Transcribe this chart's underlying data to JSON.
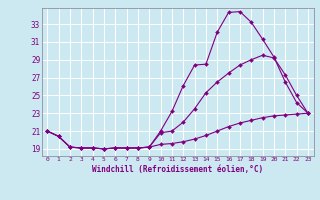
{
  "xlabel": "Windchill (Refroidissement éolien,°C)",
  "background_color": "#cce8f0",
  "grid_color": "#ffffff",
  "line_color": "#800080",
  "x_ticks": [
    0,
    1,
    2,
    3,
    4,
    5,
    6,
    7,
    8,
    9,
    10,
    11,
    12,
    13,
    14,
    15,
    16,
    17,
    18,
    19,
    20,
    21,
    22,
    23
  ],
  "y_ticks": [
    19,
    21,
    23,
    25,
    27,
    29,
    31,
    33
  ],
  "xlim": [
    -0.5,
    23.5
  ],
  "ylim": [
    18.2,
    34.8
  ],
  "series": [
    [
      21.0,
      20.4,
      19.2,
      19.1,
      19.1,
      19.0,
      19.1,
      19.1,
      19.1,
      19.2,
      21.0,
      23.2,
      26.1,
      28.4,
      28.5,
      32.1,
      34.3,
      34.4,
      33.2,
      31.3,
      29.3,
      26.5,
      24.2,
      23.0
    ],
    [
      21.0,
      20.4,
      19.2,
      19.1,
      19.1,
      19.0,
      19.1,
      19.1,
      19.1,
      19.2,
      20.8,
      21.0,
      22.0,
      23.5,
      25.3,
      26.5,
      27.5,
      28.4,
      29.0,
      29.5,
      29.2,
      27.3,
      25.0,
      23.0
    ],
    [
      21.0,
      20.4,
      19.2,
      19.1,
      19.1,
      19.0,
      19.1,
      19.1,
      19.1,
      19.2,
      19.5,
      19.6,
      19.8,
      20.1,
      20.5,
      21.0,
      21.5,
      21.9,
      22.2,
      22.5,
      22.7,
      22.8,
      22.9,
      23.0
    ]
  ]
}
